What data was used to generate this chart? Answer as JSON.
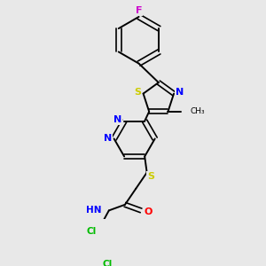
{
  "background_color": "#e8e8e8",
  "atom_colors": {
    "C": "#000000",
    "H": "#000000",
    "N": "#0000ff",
    "O": "#ff0000",
    "S": "#cccc00",
    "F": "#cc00cc",
    "Cl": "#00bb00"
  },
  "bond_color": "#000000",
  "figsize": [
    3.0,
    3.0
  ],
  "dpi": 100
}
